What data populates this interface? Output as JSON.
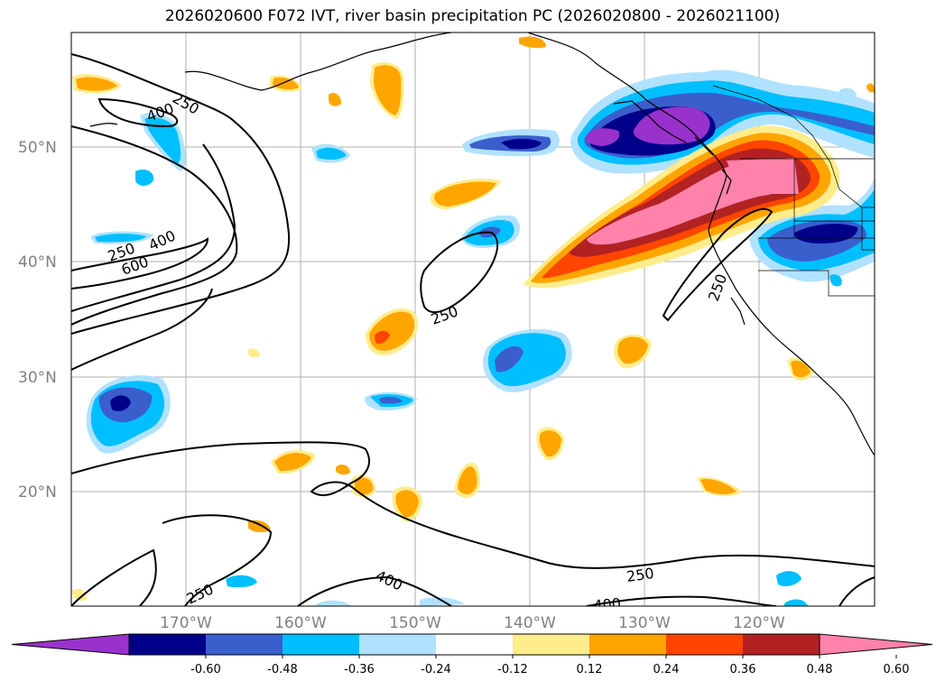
{
  "title": "2026020600 F072 IVT, river basin precipitation PC (2026020800 - 2026021100)",
  "map": {
    "lat_labels": [
      {
        "text": "50°N",
        "lat": 50
      },
      {
        "text": "40°N",
        "lat": 40
      },
      {
        "text": "30°N",
        "lat": 30
      },
      {
        "text": "20°N",
        "lat": 20
      }
    ],
    "lon_labels": [
      {
        "text": "170°W",
        "lon": -170
      },
      {
        "text": "160°W",
        "lon": -160
      },
      {
        "text": "150°W",
        "lon": -150
      },
      {
        "text": "140°W",
        "lon": -140
      },
      {
        "text": "130°W",
        "lon": -130
      },
      {
        "text": "120°W",
        "lon": -120
      }
    ],
    "extent": {
      "lon_min": -180,
      "lon_max": -110,
      "lat_min": 10,
      "lat_max": 60
    },
    "contour_labels": [
      "250",
      "400",
      "600"
    ]
  },
  "colorbar": {
    "ticks": [
      "-0.60",
      "-0.48",
      "-0.36",
      "-0.24",
      "-0.12",
      "0.12",
      "0.24",
      "0.36",
      "0.48",
      "0.60"
    ],
    "colors": [
      "#9932CC",
      "#00008B",
      "#3A5FCD",
      "#00BFFF",
      "#B0E2FF",
      "#FFFFFF",
      "#FFEC8B",
      "#FFA500",
      "#FF4500",
      "#B22222",
      "#FF82AB"
    ]
  }
}
